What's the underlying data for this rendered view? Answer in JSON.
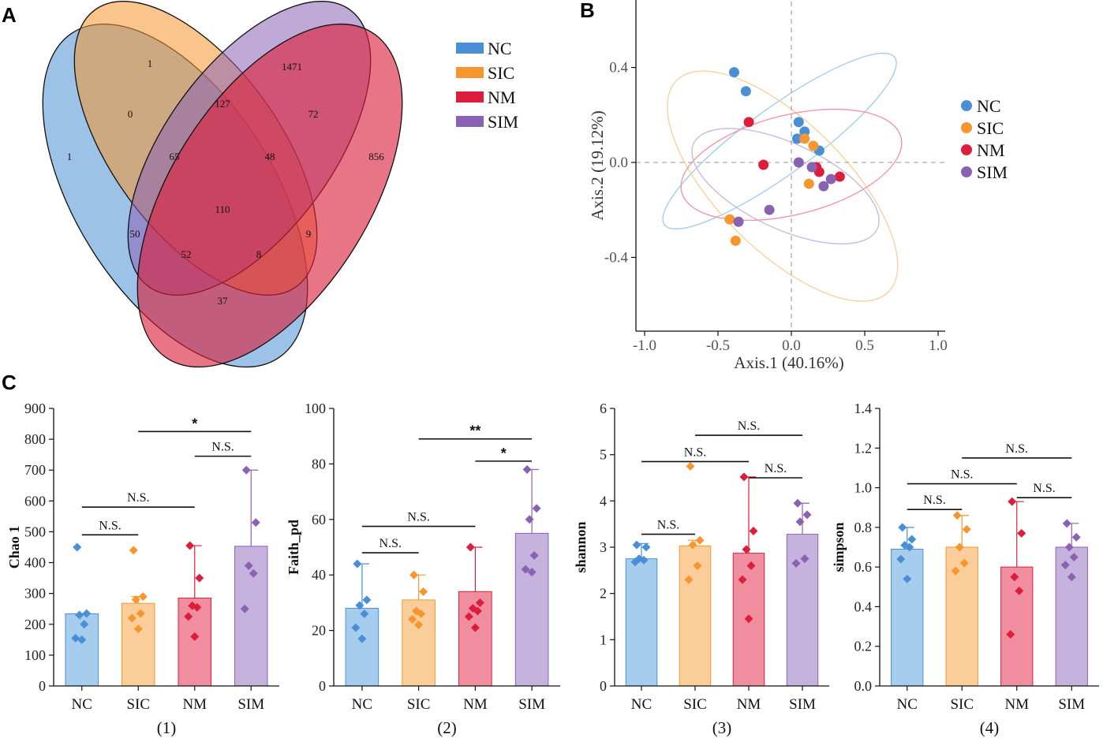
{
  "colors": {
    "NC": "#4a8fd6",
    "SIC": "#f6962e",
    "NM": "#dc1e3c",
    "SIM": "#8a62b4",
    "NC_fill": "#a7cdee",
    "SIC_fill": "#fbcd9a",
    "NM_fill": "#f08ea0",
    "SIM_fill": "#c6b3dd",
    "NC_ring": "#9ccbed",
    "SIC_ring": "#fbcf95",
    "NM_ring": "#f3909e",
    "SIM_ring": "#c4b6de"
  },
  "groups": [
    "NC",
    "SIC",
    "NM",
    "SIM"
  ],
  "panels": {
    "A": "A",
    "B": "B",
    "C": "C"
  },
  "chart_data": [
    {
      "type": "venn",
      "sets": [
        "NC",
        "SIC",
        "NM",
        "SIM"
      ],
      "region_counts": {
        "NC": 1,
        "SIC": 1,
        "SIM": 1471,
        "NM": 856,
        "NC&SIC": 0,
        "SIC&SIM": 127,
        "SIM&NM": 72,
        "NC&SIC&SIM": 65,
        "SIC&SIM&NM": 48,
        "NC&SIC&SIM&NM": 110,
        "NC&SIM": 50,
        "SIC&NM": 9,
        "NC&SIM&NM": 52,
        "NC&SIC&NM": 8,
        "NC&NM": 37
      },
      "legend": [
        "NC",
        "SIC",
        "NM",
        "SIM"
      ]
    },
    {
      "type": "scatter",
      "title": "",
      "xlabel": "Axis.1 (40.16%)",
      "ylabel": "Axis.2 (19.12%)",
      "xlim": [
        -1.05,
        1.0
      ],
      "ylim": [
        -0.72,
        0.68
      ],
      "xticks": [
        -1.0,
        -0.5,
        0.0,
        0.5,
        1.0
      ],
      "xtick_labels": [
        "-1.0",
        "-0.5",
        "0.0",
        "0.5",
        "1.0"
      ],
      "yticks": [
        0.4,
        0.0,
        -0.4
      ],
      "ytick_labels": [
        "0.4",
        "0.0",
        "-0.4"
      ],
      "legend": [
        "NC",
        "SIC",
        "NM",
        "SIM"
      ],
      "series": [
        {
          "name": "NC",
          "points": [
            [
              -0.39,
              0.38
            ],
            [
              -0.31,
              0.3
            ],
            [
              0.05,
              0.17
            ],
            [
              0.09,
              0.13
            ],
            [
              0.04,
              0.1
            ],
            [
              0.19,
              0.05
            ]
          ]
        },
        {
          "name": "SIC",
          "points": [
            [
              0.09,
              0.1
            ],
            [
              0.15,
              0.07
            ],
            [
              0.12,
              -0.09
            ],
            [
              -0.42,
              -0.24
            ],
            [
              -0.38,
              -0.33
            ]
          ]
        },
        {
          "name": "NM",
          "points": [
            [
              -0.29,
              0.17
            ],
            [
              -0.19,
              -0.01
            ],
            [
              0.17,
              -0.02
            ],
            [
              0.19,
              -0.04
            ],
            [
              0.33,
              -0.06
            ]
          ]
        },
        {
          "name": "SIM",
          "points": [
            [
              0.05,
              0.0
            ],
            [
              0.14,
              -0.02
            ],
            [
              0.22,
              -0.1
            ],
            [
              0.27,
              -0.07
            ],
            [
              -0.15,
              -0.2
            ],
            [
              -0.36,
              -0.25
            ]
          ]
        }
      ],
      "ellipses": [
        {
          "name": "NC",
          "center": [
            -0.08,
            0.09
          ],
          "semi_axes": [
            0.97,
            0.14
          ],
          "angle_deg": -36
        },
        {
          "name": "SIC",
          "center": [
            -0.06,
            -0.1
          ],
          "semi_axes": [
            1.02,
            0.27
          ],
          "angle_deg": 45
        },
        {
          "name": "NM",
          "center": [
            0.0,
            -0.01
          ],
          "semi_axes": [
            0.77,
            0.21
          ],
          "angle_deg": -14
        },
        {
          "name": "SIM",
          "center": [
            -0.04,
            -0.1
          ],
          "semi_axes": [
            0.69,
            0.18
          ],
          "angle_deg": 25
        }
      ]
    },
    {
      "type": "bar",
      "subtitle": "(1)",
      "ylabel": "Chao 1",
      "ylim": [
        0,
        900
      ],
      "yticks": [
        0,
        100,
        200,
        300,
        400,
        500,
        600,
        700,
        800,
        900
      ],
      "categories": [
        "NC",
        "SIC",
        "NM",
        "SIM"
      ],
      "values": [
        234,
        268,
        285,
        453
      ],
      "error_top": [
        234,
        290,
        455,
        700
      ],
      "points": [
        [
          450,
          235,
          230,
          200,
          155,
          150
        ],
        [
          440,
          290,
          280,
          235,
          220,
          185
        ],
        [
          455,
          350,
          260,
          255,
          225,
          160
        ],
        [
          700,
          530,
          390,
          365,
          250
        ]
      ],
      "significance": [
        {
          "from": 0,
          "to": 1,
          "label": "N.S.",
          "y": 490
        },
        {
          "from": 0,
          "to": 2,
          "label": "N.S.",
          "y": 580
        },
        {
          "from": 2,
          "to": 3,
          "label": "N.S.",
          "y": 745
        },
        {
          "from": 1,
          "to": 3,
          "label": "*",
          "y": 825
        }
      ]
    },
    {
      "type": "bar",
      "subtitle": "(2)",
      "ylabel": "Faith_pd",
      "ylim": [
        0,
        100
      ],
      "yticks": [
        0,
        20,
        40,
        60,
        80,
        100
      ],
      "categories": [
        "NC",
        "SIC",
        "NM",
        "SIM"
      ],
      "values": [
        28,
        31,
        34,
        55
      ],
      "error_top": [
        44,
        40,
        50,
        78
      ],
      "points": [
        [
          44,
          31,
          29,
          26,
          21,
          17
        ],
        [
          40,
          34,
          27,
          26,
          24,
          22
        ],
        [
          50,
          30,
          28,
          27,
          25,
          21
        ],
        [
          78,
          64,
          60,
          47,
          42,
          41
        ]
      ],
      "significance": [
        {
          "from": 0,
          "to": 1,
          "label": "N.S.",
          "y": 48
        },
        {
          "from": 0,
          "to": 2,
          "label": "N.S.",
          "y": 57.5
        },
        {
          "from": 2,
          "to": 3,
          "label": "*",
          "y": 81
        },
        {
          "from": 1,
          "to": 3,
          "label": "**",
          "y": 89
        }
      ]
    },
    {
      "type": "bar",
      "subtitle": "(3)",
      "ylabel": "shannon",
      "ylim": [
        0,
        6
      ],
      "yticks": [
        0,
        1,
        2,
        3,
        4,
        5,
        6
      ],
      "categories": [
        "NC",
        "SIC",
        "NM",
        "SIM"
      ],
      "values": [
        2.75,
        3.03,
        2.87,
        3.28
      ],
      "error_top": [
        3.08,
        3.15,
        4.52,
        3.95
      ],
      "points": [
        [
          3.05,
          3.0,
          2.75,
          2.72,
          2.68
        ],
        [
          4.75,
          3.15,
          3.05,
          2.6,
          2.3
        ],
        [
          4.52,
          3.35,
          2.95,
          2.6,
          2.3,
          1.45
        ],
        [
          3.95,
          3.7,
          3.55,
          2.75,
          2.65
        ]
      ],
      "significance": [
        {
          "from": 0,
          "to": 1,
          "label": "N.S.",
          "y": 3.28
        },
        {
          "from": 0,
          "to": 2,
          "label": "N.S.",
          "y": 4.85
        },
        {
          "from": 2,
          "to": 3,
          "label": "N.S.",
          "y": 4.5
        },
        {
          "from": 1,
          "to": 3,
          "label": "N.S.",
          "y": 5.42
        }
      ]
    },
    {
      "type": "bar",
      "subtitle": "(4)",
      "ylabel": "simpson",
      "ylim": [
        0,
        1.4
      ],
      "yticks": [
        0.0,
        0.2,
        0.4,
        0.6,
        0.8,
        1.0,
        1.2,
        1.4
      ],
      "ytick_labels": [
        "0.0",
        "0.2",
        "0.4",
        "0.6",
        "0.8",
        "1.0",
        "1.2",
        "1.4"
      ],
      "categories": [
        "NC",
        "SIC",
        "NM",
        "SIM"
      ],
      "values": [
        0.69,
        0.7,
        0.6,
        0.7
      ],
      "error_top": [
        0.8,
        0.86,
        0.93,
        0.82
      ],
      "points": [
        [
          0.8,
          0.74,
          0.71,
          0.7,
          0.64,
          0.54
        ],
        [
          0.86,
          0.79,
          0.7,
          0.62,
          0.58
        ],
        [
          0.93,
          0.77,
          0.55,
          0.48,
          0.26
        ],
        [
          0.82,
          0.75,
          0.7,
          0.65,
          0.61,
          0.55
        ]
      ],
      "significance": [
        {
          "from": 0,
          "to": 1,
          "label": "N.S.",
          "y": 0.89
        },
        {
          "from": 0,
          "to": 2,
          "label": "N.S.",
          "y": 1.02
        },
        {
          "from": 2,
          "to": 3,
          "label": "N.S.",
          "y": 0.95
        },
        {
          "from": 1,
          "to": 3,
          "label": "N.S.",
          "y": 1.15
        }
      ]
    }
  ]
}
